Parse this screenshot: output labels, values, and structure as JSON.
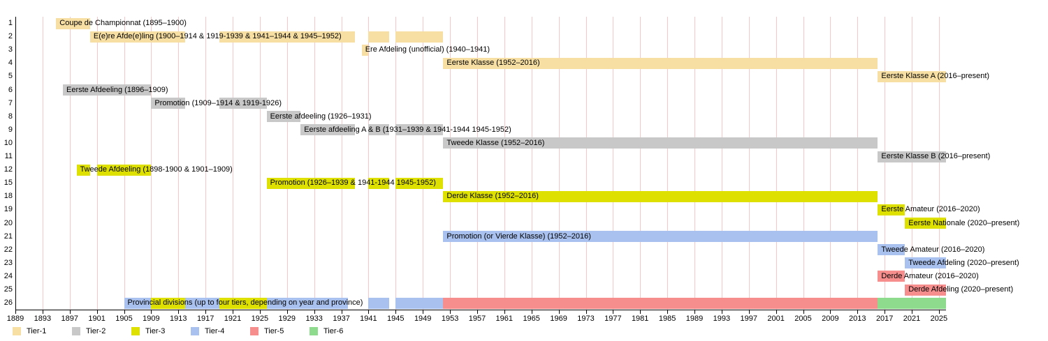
{
  "chart_data": {
    "type": "bar",
    "subtype": "timeline-gantt",
    "title": "",
    "description": "Timeline of Belgian football league divisions by tier, 1889 to present",
    "x_axis": {
      "min_year": 1889,
      "tick_start": 1889,
      "tick_end": 2025,
      "tick_step": 4,
      "present_end_year": 2026,
      "tick_labels": [
        1889,
        1893,
        1897,
        1901,
        1905,
        1909,
        1913,
        1917,
        1921,
        1925,
        1929,
        1933,
        1937,
        1941,
        1945,
        1949,
        1953,
        1957,
        1961,
        1965,
        1969,
        1973,
        1977,
        1981,
        1985,
        1989,
        1993,
        1997,
        2001,
        2005,
        2009,
        2013,
        2017,
        2021,
        2025
      ]
    },
    "colors": {
      "tier1": "#F7DFA3",
      "tier2": "#C8C8C8",
      "tier3": "#DEE000",
      "tier4": "#A9C1EE",
      "tier5": "#F78E8E",
      "tier6": "#8EDB8E",
      "gridline": "#F8C6C6",
      "axis": "#000000",
      "text": "#000000"
    },
    "grid": true,
    "legend_position": "bottom",
    "legend": [
      {
        "label": "Tier-1",
        "tier": "tier1"
      },
      {
        "label": "Tier-2",
        "tier": "tier2"
      },
      {
        "label": "Tier-3",
        "tier": "tier3"
      },
      {
        "label": "Tier-4",
        "tier": "tier4"
      },
      {
        "label": "Tier-5",
        "tier": "tier5"
      },
      {
        "label": "Tier-6",
        "tier": "tier6"
      }
    ],
    "rows": [
      {
        "row": "1",
        "label": "Coupe de Championnat (1895–1900)",
        "tier": "tier1",
        "segments": [
          {
            "start": 1895,
            "end": 1900
          }
        ]
      },
      {
        "row": "2",
        "label": "E(e)re Afde(e)ling (1900–1914 & 1919-1939 & 1941–1944 & 1945–1952)",
        "tier": "tier1",
        "segments": [
          {
            "start": 1900,
            "end": 1914
          },
          {
            "start": 1919,
            "end": 1939
          },
          {
            "start": 1941,
            "end": 1944
          },
          {
            "start": 1945,
            "end": 1952
          }
        ]
      },
      {
        "row": "3",
        "label": "Ere Afdeling (unofficial) (1940–1941)",
        "tier": "tier1",
        "segments": [
          {
            "start": 1940,
            "end": 1941
          }
        ]
      },
      {
        "row": "4",
        "label": "Eerste Klasse (1952–2016)",
        "tier": "tier1",
        "segments": [
          {
            "start": 1952,
            "end": 2016
          }
        ]
      },
      {
        "row": "5",
        "label": "Eerste Klasse A (2016–present)",
        "tier": "tier1",
        "segments": [
          {
            "start": 2016,
            "end": "present"
          }
        ]
      },
      {
        "row": "6",
        "label": "Eerste Afdeeling (1896–1909)",
        "tier": "tier2",
        "segments": [
          {
            "start": 1896,
            "end": 1909
          }
        ]
      },
      {
        "row": "7",
        "label": "Promotion (1909–1914 & 1919-1926)",
        "tier": "tier2",
        "segments": [
          {
            "start": 1909,
            "end": 1914
          },
          {
            "start": 1919,
            "end": 1926
          }
        ]
      },
      {
        "row": "8",
        "label": "Eerste afdeeling (1926–1931)",
        "tier": "tier2",
        "segments": [
          {
            "start": 1926,
            "end": 1931
          }
        ]
      },
      {
        "row": "9",
        "label": "Eerste afdeeling A & B (1931–1939 & 1941-1944 1945-1952)",
        "tier": "tier2",
        "segments": [
          {
            "start": 1931,
            "end": 1939
          },
          {
            "start": 1941,
            "end": 1944
          },
          {
            "start": 1945,
            "end": 1952
          }
        ]
      },
      {
        "row": "10",
        "label": "Tweede Klasse (1952–2016)",
        "tier": "tier2",
        "segments": [
          {
            "start": 1952,
            "end": 2016
          }
        ]
      },
      {
        "row": "11",
        "label": "Eerste Klasse B (2016–present)",
        "tier": "tier2",
        "segments": [
          {
            "start": 2016,
            "end": "present"
          }
        ]
      },
      {
        "row": "12",
        "label": "Tweede Afdeeling (1898-1900 & 1901–1909)",
        "tier": "tier3",
        "segments": [
          {
            "start": 1898,
            "end": 1900
          },
          {
            "start": 1901,
            "end": 1909
          }
        ]
      },
      {
        "row": "15",
        "label": "Promotion (1926–1939 & 1941-1944 1945-1952)",
        "tier": "tier3",
        "segments": [
          {
            "start": 1926,
            "end": 1939
          },
          {
            "start": 1941,
            "end": 1944
          },
          {
            "start": 1945,
            "end": 1952
          }
        ]
      },
      {
        "row": "18",
        "label": "Derde Klasse (1952–2016)",
        "tier": "tier3",
        "segments": [
          {
            "start": 1952,
            "end": 2016
          }
        ]
      },
      {
        "row": "19",
        "label": "Eerste Amateur (2016–2020)",
        "tier": "tier3",
        "segments": [
          {
            "start": 2016,
            "end": 2020
          }
        ]
      },
      {
        "row": "20",
        "label": "Eerste Nationale (2020–present)",
        "tier": "tier3",
        "segments": [
          {
            "start": 2020,
            "end": "present"
          }
        ]
      },
      {
        "row": "21",
        "label": "Promotion (or Vierde Klasse) (1952–2016)",
        "tier": "tier4",
        "segments": [
          {
            "start": 1952,
            "end": 2016
          }
        ]
      },
      {
        "row": "22",
        "label": "Tweede Amateur (2016–2020)",
        "tier": "tier4",
        "segments": [
          {
            "start": 2016,
            "end": 2020
          }
        ]
      },
      {
        "row": "23",
        "label": "Tweede Afdeling (2020–present)",
        "tier": "tier4",
        "segments": [
          {
            "start": 2020,
            "end": "present"
          }
        ]
      },
      {
        "row": "24",
        "label": "Derde Amateur (2016–2020)",
        "tier": "tier5",
        "segments": [
          {
            "start": 2016,
            "end": 2020
          }
        ]
      },
      {
        "row": "25",
        "label": "Derde Afdeling (2020–present)",
        "tier": "tier5",
        "segments": [
          {
            "start": 2020,
            "end": "present"
          }
        ]
      },
      {
        "row": "26",
        "label": "Provincial divisions (up to four tiers, depending on year and province)",
        "tier": "tier4",
        "segments": [
          {
            "start": 1905,
            "end": 1909,
            "tier": "tier4"
          },
          {
            "start": 1909,
            "end": 1914,
            "tier": "tier3"
          },
          {
            "start": 1914,
            "end": 1919,
            "tier": "tier4"
          },
          {
            "start": 1919,
            "end": 1926,
            "tier": "tier3"
          },
          {
            "start": 1926,
            "end": 1938,
            "tier": "tier4"
          },
          {
            "start": 1941,
            "end": 1944,
            "tier": "tier4"
          },
          {
            "start": 1945,
            "end": 1952,
            "tier": "tier4"
          },
          {
            "start": 1952,
            "end": 2016,
            "tier": "tier5"
          },
          {
            "start": 2016,
            "end": "present",
            "tier": "tier6"
          }
        ]
      }
    ]
  }
}
